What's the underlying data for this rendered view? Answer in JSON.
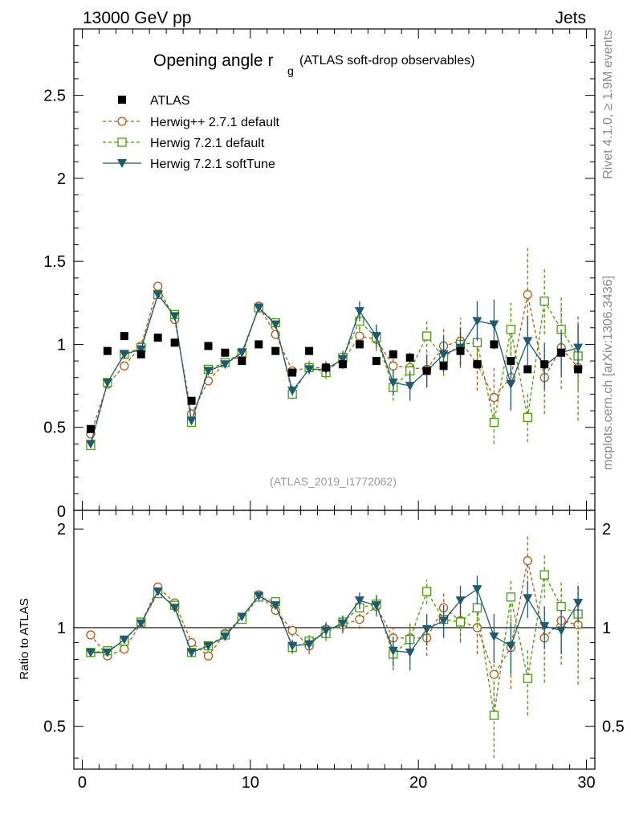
{
  "header": {
    "energy_label": "13000 GeV pp",
    "category_label": "Jets"
  },
  "side_labels": {
    "rivet": "Rivet 4.1.0, ≥ 1.9M events",
    "mcplots": "mcplots.cern.ch [arXiv:1306.3436]"
  },
  "chart_data": [
    {
      "type": "scatter",
      "title": "Opening angle r",
      "title_subscript": "g",
      "subtitle": "(ATLAS soft-drop observables)",
      "analysis_label": "(ATLAS_2019_I1772062)",
      "xlabel": "",
      "ylabel": "",
      "xlim": [
        -0.5,
        30.5
      ],
      "ylim": [
        0,
        2.9
      ],
      "yticks": [
        0.5,
        1,
        1.5,
        2,
        2.5
      ],
      "ytick_labels": [
        "0.5",
        "1",
        "1.5",
        "2",
        "2.5"
      ],
      "bottom_tick_label": "0",
      "legend": "top-left",
      "x": [
        0.5,
        1.5,
        2.5,
        3.5,
        4.5,
        5.5,
        6.5,
        7.5,
        8.5,
        9.5,
        10.5,
        11.5,
        12.5,
        13.5,
        14.5,
        15.5,
        16.5,
        17.5,
        18.5,
        19.5,
        20.5,
        21.5,
        22.5,
        23.5,
        24.5,
        25.5,
        26.5,
        27.5,
        28.5,
        29.5
      ],
      "series": [
        {
          "name": "ATLAS",
          "style": "data",
          "color": "#000000",
          "values": [
            0.49,
            0.96,
            1.05,
            0.94,
            1.04,
            1.01,
            0.66,
            0.99,
            0.95,
            0.9,
            1.0,
            0.96,
            0.83,
            0.96,
            0.86,
            0.88,
            1.0,
            0.9,
            0.94,
            0.92,
            0.84,
            0.87,
            0.96,
            0.88,
            1.0,
            0.9,
            0.85,
            0.88,
            0.95,
            0.85
          ]
        },
        {
          "name": "Herwig++ 2.7.1 default",
          "style": "circle-dashed",
          "color": "#b05a1a",
          "values": [
            0.46,
            0.76,
            0.87,
            0.99,
            1.35,
            1.15,
            0.58,
            0.78,
            0.89,
            0.93,
            1.23,
            1.06,
            0.84,
            0.86,
            0.86,
            0.9,
            1.05,
            1.03,
            0.87,
            0.86,
            0.85,
            0.99,
            1.02,
            0.88,
            0.68,
            0.8,
            1.3,
            0.8,
            0.98,
            0.86
          ],
          "errors": [
            0.01,
            0.01,
            0.01,
            0.01,
            0.01,
            0.01,
            0.01,
            0.01,
            0.01,
            0.01,
            0.01,
            0.02,
            0.03,
            0.04,
            0.04,
            0.05,
            0.06,
            0.07,
            0.08,
            0.09,
            0.1,
            0.12,
            0.14,
            0.16,
            0.18,
            0.2,
            0.28,
            0.22,
            0.25,
            0.32
          ]
        },
        {
          "name": "Herwig 7.2.1 default",
          "style": "square-dashed",
          "color": "#4a9a0a",
          "values": [
            0.39,
            0.77,
            0.94,
            0.98,
            1.3,
            1.18,
            0.53,
            0.85,
            0.89,
            0.95,
            1.22,
            1.13,
            0.7,
            0.86,
            0.83,
            0.92,
            1.14,
            1.04,
            0.74,
            0.84,
            1.05,
            0.92,
            1.0,
            1.01,
            0.53,
            1.09,
            0.56,
            1.26,
            1.09,
            0.93
          ],
          "errors": [
            0.01,
            0.01,
            0.01,
            0.01,
            0.01,
            0.01,
            0.01,
            0.01,
            0.01,
            0.01,
            0.01,
            0.02,
            0.03,
            0.03,
            0.04,
            0.05,
            0.06,
            0.07,
            0.08,
            0.09,
            0.1,
            0.11,
            0.12,
            0.14,
            0.13,
            0.16,
            0.15,
            0.2,
            0.2,
            0.2
          ]
        },
        {
          "name": "Herwig 7.2.1 softTune",
          "style": "triangle-solid",
          "color": "#1e5a70",
          "values": [
            0.4,
            0.77,
            0.94,
            0.97,
            1.3,
            1.17,
            0.54,
            0.84,
            0.88,
            0.95,
            1.22,
            1.12,
            0.72,
            0.85,
            0.85,
            0.91,
            1.2,
            1.05,
            0.77,
            0.75,
            0.84,
            0.94,
            0.98,
            1.14,
            1.12,
            0.76,
            1.02,
            0.87,
            0.95,
            0.98
          ],
          "errors": [
            0.01,
            0.01,
            0.01,
            0.01,
            0.01,
            0.01,
            0.01,
            0.01,
            0.01,
            0.01,
            0.01,
            0.02,
            0.03,
            0.03,
            0.04,
            0.05,
            0.06,
            0.07,
            0.08,
            0.09,
            0.1,
            0.11,
            0.12,
            0.12,
            0.15,
            0.15,
            0.15,
            0.14,
            0.14,
            0.14
          ]
        }
      ]
    },
    {
      "type": "scatter",
      "title": "",
      "xlabel": "",
      "ylabel": "Ratio to ATLAS",
      "xlim": [
        -0.5,
        30.5
      ],
      "ylim": [
        0.37,
        2.28
      ],
      "yscale": "log",
      "yticks": [
        0.5,
        1,
        2
      ],
      "ytick_labels": [
        "0.5",
        "1",
        "2"
      ],
      "xticks": [
        0,
        10,
        20,
        30
      ],
      "xtick_labels": [
        "0",
        "10",
        "20",
        "30"
      ],
      "reference_line": 1,
      "x": [
        0.5,
        1.5,
        2.5,
        3.5,
        4.5,
        5.5,
        6.5,
        7.5,
        8.5,
        9.5,
        10.5,
        11.5,
        12.5,
        13.5,
        14.5,
        15.5,
        16.5,
        17.5,
        18.5,
        19.5,
        20.5,
        21.5,
        22.5,
        23.5,
        24.5,
        25.5,
        26.5,
        27.5,
        28.5,
        29.5
      ],
      "series": [
        {
          "name": "Herwig++ 2.7.1 default",
          "style": "circle-dashed",
          "color": "#b05a1a",
          "values": [
            0.95,
            0.82,
            0.86,
            1.03,
            1.33,
            1.19,
            0.9,
            0.82,
            0.96,
            1.07,
            1.26,
            1.13,
            0.98,
            0.88,
            0.99,
            1.02,
            1.06,
            1.16,
            0.93,
            0.93,
            0.93,
            1.15,
            1.05,
            1.0,
            0.72,
            0.87,
            1.6,
            0.93,
            1.05,
            1.02
          ],
          "errors": [
            0.02,
            0.02,
            0.02,
            0.02,
            0.02,
            0.02,
            0.02,
            0.02,
            0.02,
            0.02,
            0.02,
            0.03,
            0.04,
            0.05,
            0.05,
            0.06,
            0.07,
            0.08,
            0.09,
            0.1,
            0.11,
            0.13,
            0.15,
            0.17,
            0.19,
            0.22,
            0.3,
            0.25,
            0.28,
            0.35
          ]
        },
        {
          "name": "Herwig 7.2.1 default",
          "style": "square-dashed",
          "color": "#4a9a0a",
          "values": [
            0.84,
            0.85,
            0.91,
            1.04,
            1.27,
            1.17,
            0.84,
            0.88,
            0.95,
            1.06,
            1.24,
            1.2,
            0.87,
            0.91,
            0.96,
            1.04,
            1.15,
            1.18,
            0.83,
            0.92,
            1.29,
            1.06,
            1.04,
            1.15,
            0.54,
            1.24,
            0.7,
            1.45,
            1.16,
            1.1
          ],
          "errors": [
            0.02,
            0.02,
            0.02,
            0.02,
            0.02,
            0.02,
            0.02,
            0.02,
            0.02,
            0.02,
            0.02,
            0.03,
            0.04,
            0.04,
            0.05,
            0.06,
            0.07,
            0.08,
            0.09,
            0.1,
            0.11,
            0.12,
            0.13,
            0.15,
            0.14,
            0.17,
            0.16,
            0.22,
            0.22,
            0.22
          ]
        },
        {
          "name": "Herwig 7.2.1 softTune",
          "style": "triangle-solid",
          "color": "#1e5a70",
          "values": [
            0.84,
            0.84,
            0.92,
            1.03,
            1.29,
            1.15,
            0.84,
            0.88,
            0.94,
            1.08,
            1.25,
            1.17,
            0.88,
            0.89,
            0.98,
            1.03,
            1.21,
            1.17,
            0.85,
            0.84,
            0.99,
            1.05,
            1.21,
            1.31,
            0.94,
            0.88,
            1.23,
            1.01,
            0.98,
            1.19
          ],
          "errors": [
            0.02,
            0.02,
            0.02,
            0.02,
            0.02,
            0.02,
            0.02,
            0.02,
            0.02,
            0.02,
            0.02,
            0.03,
            0.04,
            0.04,
            0.05,
            0.06,
            0.07,
            0.08,
            0.09,
            0.1,
            0.11,
            0.12,
            0.13,
            0.13,
            0.16,
            0.16,
            0.16,
            0.15,
            0.15,
            0.15
          ]
        }
      ]
    }
  ]
}
